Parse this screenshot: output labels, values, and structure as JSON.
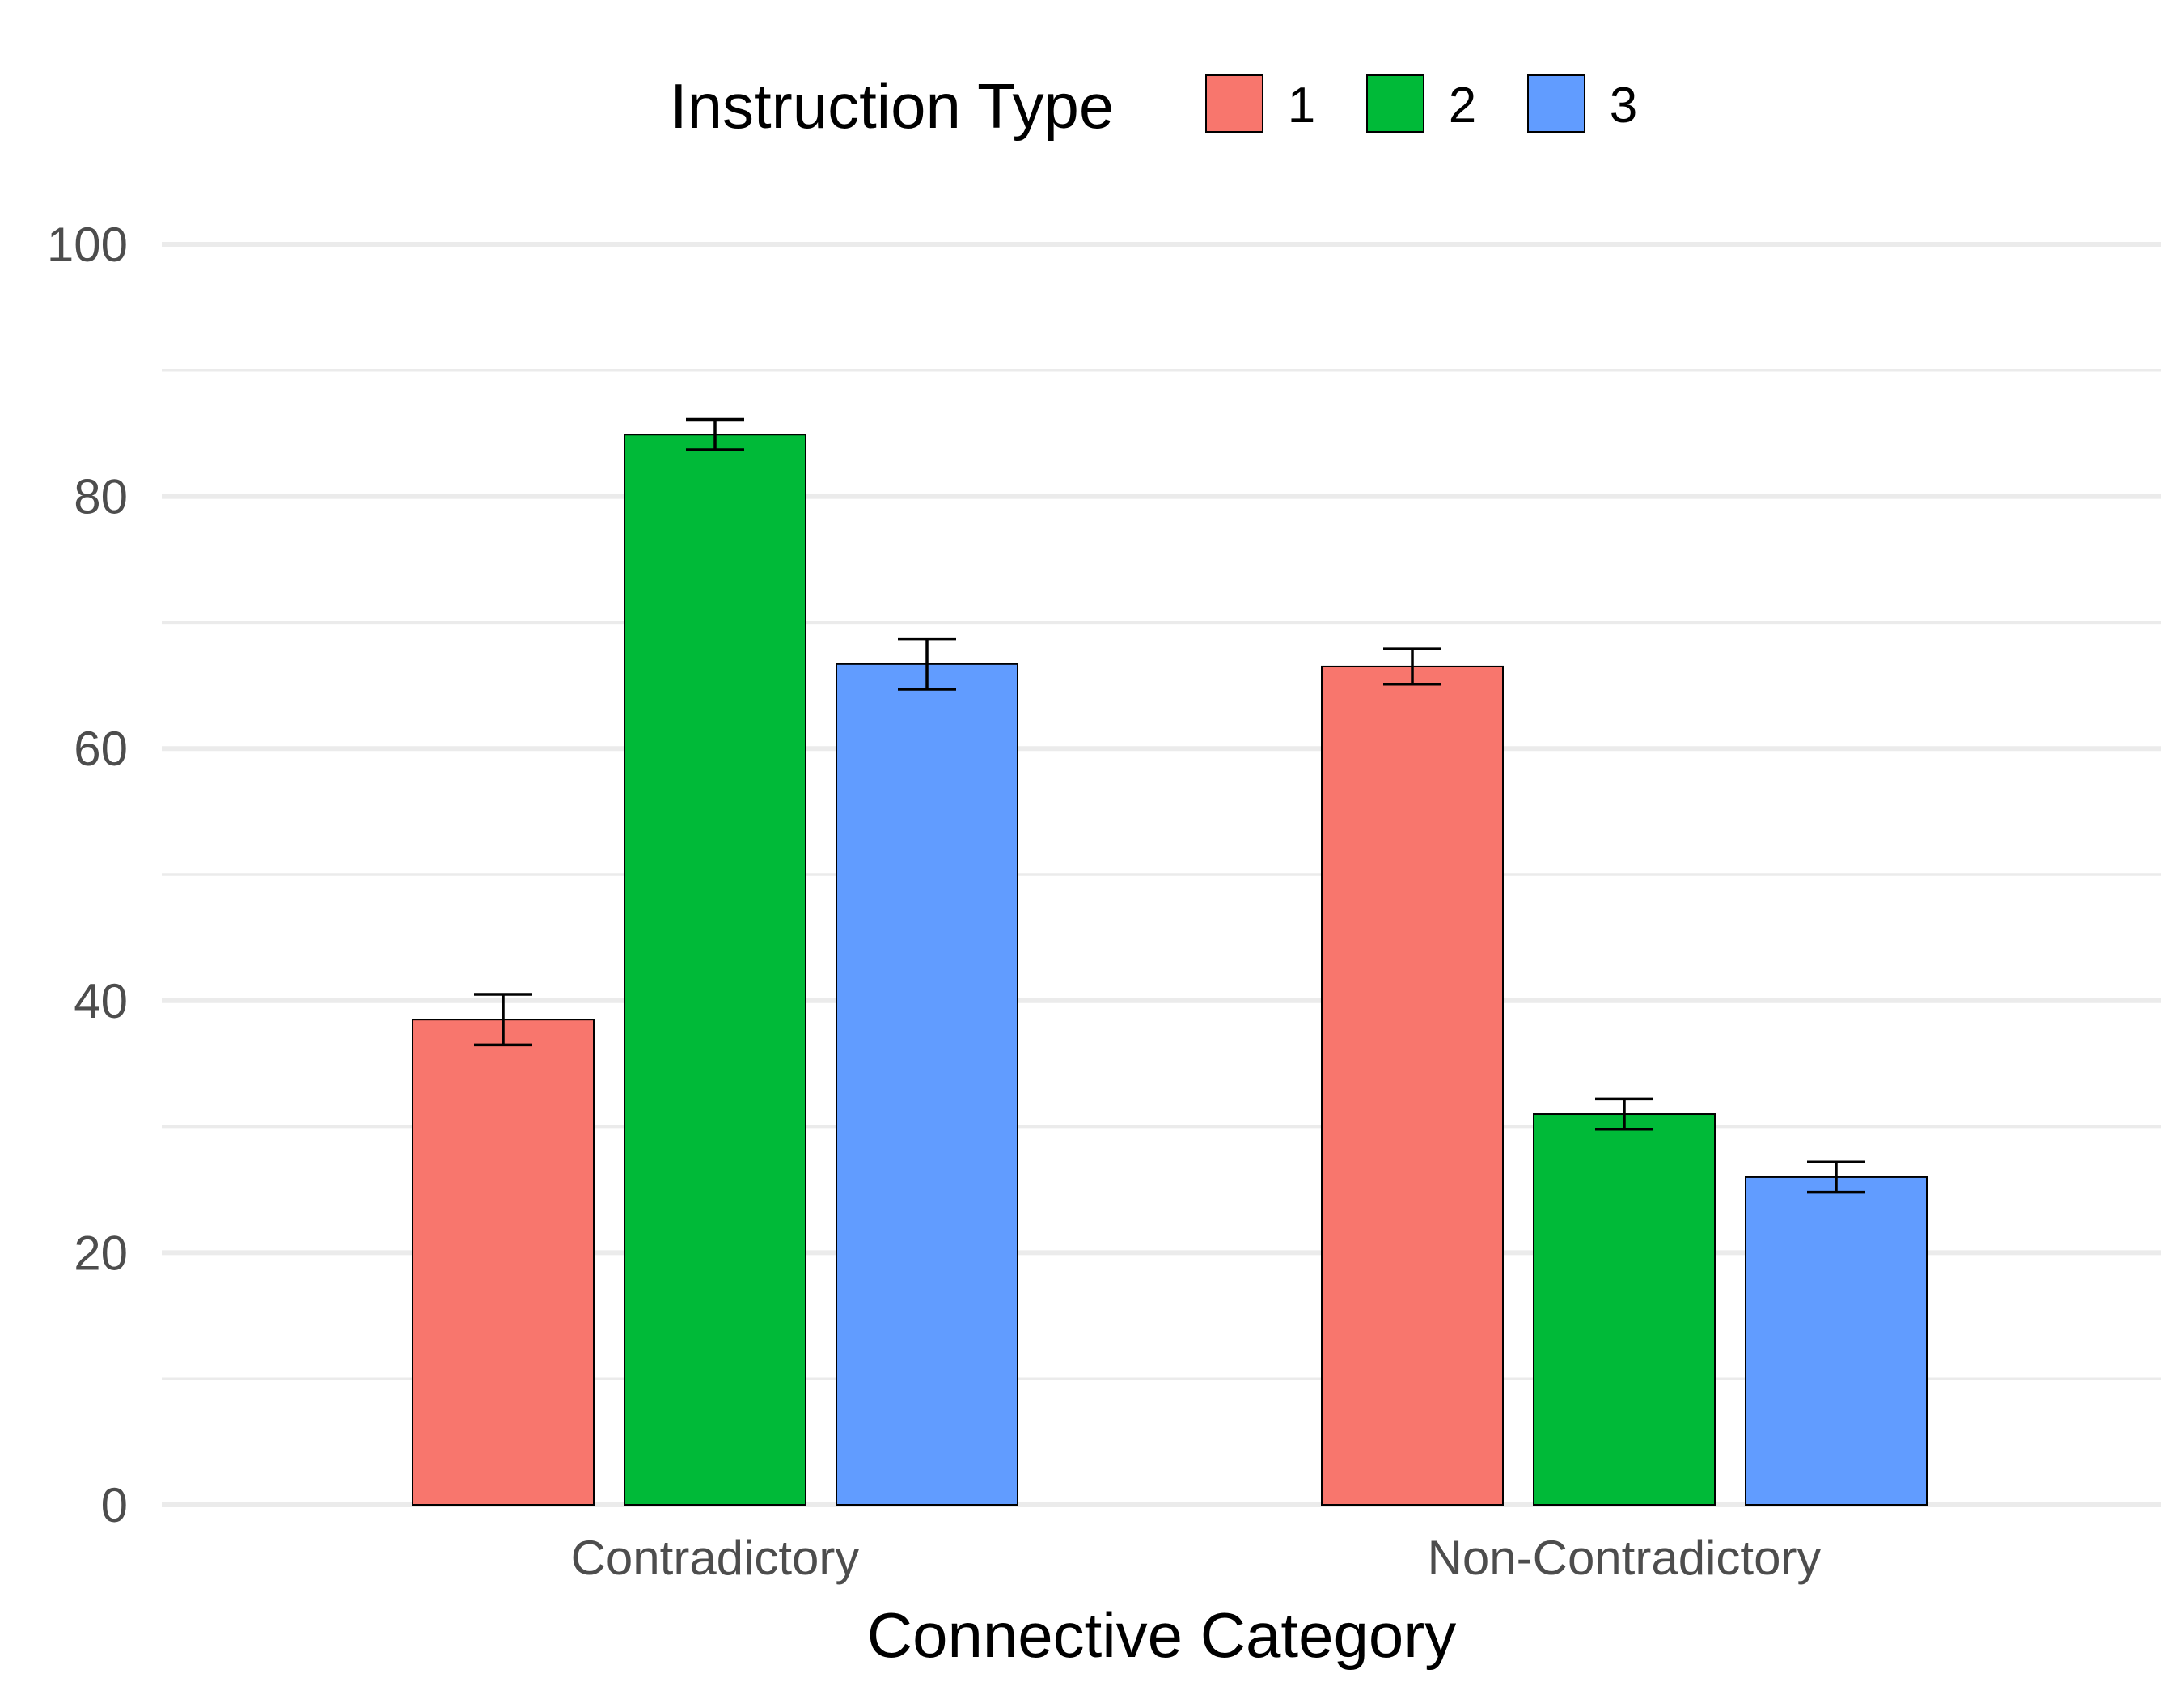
{
  "chart_data": {
    "type": "bar",
    "title": "",
    "xlabel": "Connective Category",
    "ylabel": "",
    "ylim": [
      0,
      100
    ],
    "yticks": [
      0,
      20,
      40,
      60,
      80,
      100
    ],
    "grid": "horizontal",
    "legend_position": "top",
    "legend_title": "Instruction Type",
    "categories": [
      "Contradictory",
      "Non-Contradictory"
    ],
    "series": [
      {
        "name": "1",
        "color": "#F8766D",
        "values": [
          38.5,
          66.5
        ],
        "error": [
          2.0,
          1.4
        ]
      },
      {
        "name": "2",
        "color": "#00BA38",
        "values": [
          84.9,
          31.0
        ],
        "error": [
          1.2,
          1.2
        ]
      },
      {
        "name": "3",
        "color": "#619CFF",
        "values": [
          66.7,
          26.0
        ],
        "error": [
          2.0,
          1.2
        ]
      }
    ]
  }
}
